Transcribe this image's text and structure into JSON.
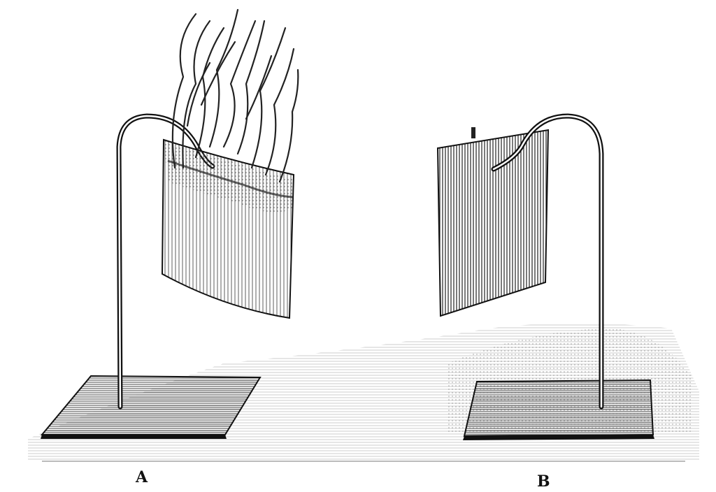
{
  "figure": {
    "labels": {
      "a": "A",
      "b": "B"
    },
    "stand_a": {
      "state": "burning"
    },
    "stand_b": {
      "state": "intact"
    }
  },
  "colors": {
    "ink": "#111111",
    "paper": "#ffffff",
    "shade": "#555555"
  }
}
